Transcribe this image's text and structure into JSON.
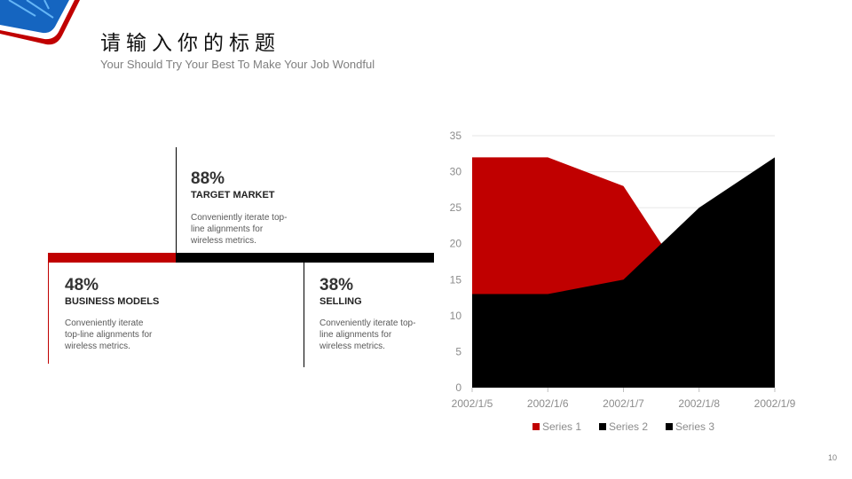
{
  "header": {
    "title": "请输入你的标题",
    "subtitle": "Your Should Try Your Best To Make Your Job Wondful"
  },
  "stats": [
    {
      "percent": "88%",
      "label": "TARGET MARKET",
      "desc": "Conveniently iterate top-line alignments for wireless metrics."
    },
    {
      "percent": "48%",
      "label": "BUSINESS MODELS",
      "desc": "Conveniently iterate top-line alignments for wireless metrics."
    },
    {
      "percent": "38%",
      "label": "SELLING",
      "desc": "Conveniently iterate top-line alignments for wireless metrics."
    }
  ],
  "colors": {
    "accent": "#c00000",
    "dark": "#000000",
    "muted": "#7f7f7f"
  },
  "chart_data": {
    "type": "area",
    "categories": [
      "2002/1/5",
      "2002/1/6",
      "2002/1/7",
      "2002/1/8",
      "2002/1/9"
    ],
    "series": [
      {
        "name": "Series 1",
        "values": [
          32,
          32,
          28,
          12,
          15
        ],
        "color": "#c00000"
      },
      {
        "name": "Series 2",
        "values": [
          13,
          13,
          15,
          25,
          32
        ],
        "color": "#000000"
      },
      {
        "name": "Series 3",
        "values": [
          0,
          0,
          0,
          0,
          0
        ],
        "color": "#000000"
      }
    ],
    "ylim": [
      0,
      35
    ],
    "yticks": [
      "0",
      "5",
      "10",
      "15",
      "20",
      "25",
      "30",
      "35"
    ],
    "grid": true,
    "legend_position": "bottom"
  },
  "page_number": "10"
}
